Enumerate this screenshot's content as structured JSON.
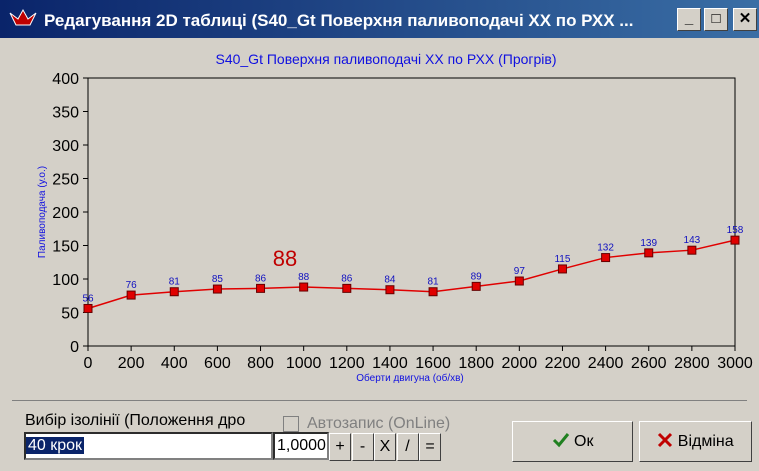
{
  "window": {
    "title": "Редагування 2D таблиці (S40_Gt Поверхня паливоподачі ХХ по РХХ ..."
  },
  "chart_data": {
    "type": "line",
    "title": "S40_Gt Поверхня паливоподачі ХХ по РХХ (Прогрів)",
    "x_label": "Оберти двигуна (об/хв)",
    "y_label": "Паливоподача (у.о.)",
    "x": [
      0,
      200,
      400,
      600,
      800,
      1000,
      1200,
      1400,
      1600,
      1800,
      2000,
      2200,
      2400,
      2600,
      2800,
      3000
    ],
    "series": [
      {
        "color": "#e00000",
        "values": [
          56,
          76,
          81,
          85,
          86,
          88,
          86,
          84,
          81,
          89,
          97,
          115,
          132,
          139,
          143,
          158
        ]
      }
    ],
    "xlim": [
      0,
      3000
    ],
    "xticks": [
      0,
      200,
      400,
      600,
      800,
      1000,
      1200,
      1400,
      1600,
      1800,
      2000,
      2200,
      2400,
      2600,
      2800,
      3000
    ],
    "ylim": [
      0,
      400
    ],
    "yticks": [
      0,
      50,
      100,
      150,
      200,
      250,
      300,
      350,
      400
    ],
    "grid": false,
    "highlight": 88
  },
  "controls": {
    "isoline_label": "Вибір ізолінії (Положення дро",
    "isoline_value": "40 крок",
    "step_value": "1,0000",
    "ops": [
      "+",
      "-",
      "X",
      "/",
      "="
    ],
    "autosave": "Автозапис (OnLine)",
    "ok": "Ок",
    "cancel": "Відміна"
  }
}
